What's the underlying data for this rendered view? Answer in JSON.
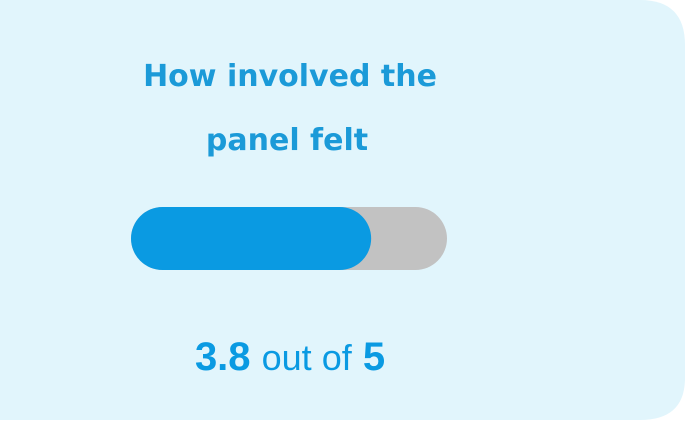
{
  "card": {
    "title_lines": [
      "How involved the",
      "panel felt"
    ],
    "score": {
      "value": 3.8,
      "connector": "out of",
      "max": 5
    }
  }
}
